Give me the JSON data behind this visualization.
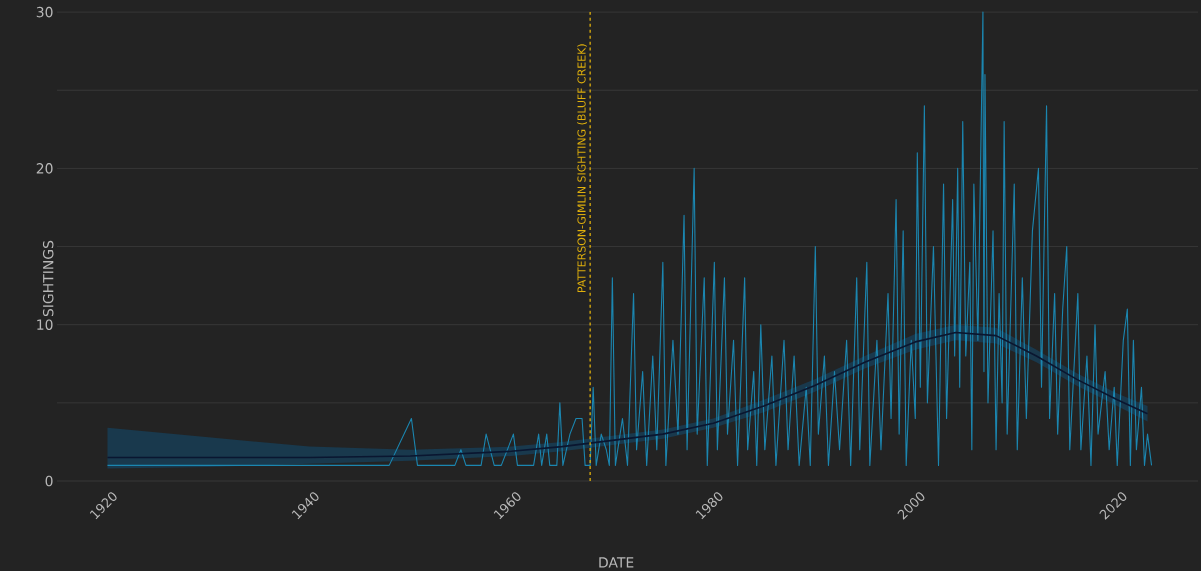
{
  "chart_data": {
    "type": "line",
    "xlabel": "DATE",
    "ylabel": "SIGHTINGS",
    "xlim": [
      1915,
      2028
    ],
    "ylim": [
      0,
      30
    ],
    "xticks": [
      1920,
      1940,
      1960,
      1980,
      2000,
      2020
    ],
    "yticks": [
      0,
      {
        "value": 5,
        "label": null
      },
      10,
      {
        "value": 15,
        "label": null
      },
      20,
      {
        "value": 25,
        "label": null
      },
      30
    ],
    "grid": "y",
    "ref_lines": [
      {
        "axis": "x",
        "value": 1967.8,
        "label": "PATTERSON-GIMLIN SIGHTING (BLUFF CREEK)",
        "color": "#e0b00c",
        "line_style": "dashed"
      }
    ],
    "series": [
      {
        "color": "#1b86b0",
        "x": [
          1920,
          1947.9,
          1950.1,
          1950.7,
          1954.4,
          1955.0,
          1955.5,
          1957.0,
          1957.5,
          1958.3,
          1959.0,
          1960.2,
          1960.6,
          1962.2,
          1962.7,
          1963.0,
          1963.5,
          1963.8,
          1964.5,
          1964.8,
          1965.1,
          1965.8,
          1966.4,
          1967.0,
          1967.3,
          1967.8,
          1968.1,
          1968.4,
          1968.9,
          1969.4,
          1969.7,
          1970.0,
          1970.3,
          1971.0,
          1971.5,
          1972.1,
          1972.4,
          1973.0,
          1973.4,
          1974.0,
          1974.4,
          1975.0,
          1975.3,
          1976.0,
          1976.5,
          1977.1,
          1977.4,
          1978.1,
          1978.4,
          1979.1,
          1979.4,
          1980.1,
          1980.4,
          1981.1,
          1981.4,
          1982.0,
          1982.4,
          1983.1,
          1983.4,
          1984.0,
          1984.3,
          1984.7,
          1985.1,
          1985.8,
          1986.2,
          1987.0,
          1987.4,
          1988.0,
          1988.5,
          1989.2,
          1989.6,
          1990.1,
          1990.4,
          1991.0,
          1991.4,
          1992.0,
          1992.5,
          1993.2,
          1993.6,
          1994.2,
          1994.5,
          1995.2,
          1995.5,
          1996.2,
          1996.6,
          1997.3,
          1997.6,
          1998.1,
          1998.4,
          1998.8,
          1999.1,
          1999.6,
          2000.0,
          2000.2,
          2000.5,
          2000.9,
          2001.2,
          2001.8,
          2002.3,
          2002.8,
          2003.1,
          2003.7,
          2003.9,
          2004.2,
          2004.4,
          2004.7,
          2005.0,
          2005.4,
          2005.6,
          2005.8,
          2006.2,
          2006.7,
          2006.8,
          2006.9,
          2007.2,
          2007.7,
          2008.0,
          2008.3,
          2008.6,
          2008.8,
          2009.1,
          2009.8,
          2010.1,
          2010.6,
          2011.0,
          2011.6,
          2011.9,
          2012.2,
          2012.5,
          2013.0,
          2013.3,
          2013.8,
          2014.1,
          2014.6,
          2015.0,
          2015.3,
          2016.1,
          2016.4,
          2017.0,
          2017.4,
          2017.8,
          2018.1,
          2018.8,
          2019.2,
          2019.7,
          2020.0,
          2020.6,
          2021.0,
          2021.3,
          2021.6,
          2021.9,
          2022.4,
          2022.7,
          2023.0,
          2023.4
        ],
        "values": [
          1,
          1,
          4,
          1,
          1,
          2,
          1,
          1,
          3,
          1,
          1,
          3,
          1,
          1,
          3,
          1,
          3,
          1,
          1,
          5,
          1,
          3,
          4,
          4,
          1,
          1,
          6,
          1,
          3,
          2,
          1,
          13,
          1,
          4,
          1,
          12,
          2,
          7,
          1,
          8,
          2,
          14,
          1,
          9,
          3,
          17,
          2,
          20,
          3,
          13,
          1,
          14,
          2,
          13,
          3,
          9,
          1,
          13,
          2,
          7,
          1,
          10,
          2,
          8,
          1,
          9,
          2,
          8,
          1,
          6,
          1,
          15,
          3,
          8,
          1,
          7,
          2,
          9,
          1,
          13,
          2,
          14,
          1,
          9,
          2,
          12,
          4,
          18,
          3,
          16,
          1,
          9,
          4,
          21,
          6,
          24,
          5,
          15,
          1,
          19,
          4,
          18,
          8,
          20,
          6,
          23,
          8,
          14,
          2,
          19,
          9,
          30,
          7,
          26,
          5,
          16,
          2,
          12,
          5,
          23,
          3,
          19,
          2,
          13,
          4,
          16,
          18,
          20,
          6,
          24,
          4,
          12,
          3,
          11,
          15,
          2,
          12,
          2,
          8,
          1,
          10,
          3,
          7,
          2,
          6,
          1,
          9,
          11,
          1,
          9,
          2,
          6,
          1,
          3,
          1
        ]
      },
      {
        "type": "line",
        "color": "#0a1630",
        "x": [
          1920,
          1930,
          1940,
          1950,
          1960,
          1965,
          1970,
          1975,
          1980,
          1985,
          1990,
          1995,
          2000,
          2004,
          2008,
          2012,
          2016,
          2020,
          2023
        ],
        "values": [
          1.5,
          1.5,
          1.5,
          1.6,
          1.9,
          2.2,
          2.6,
          3.0,
          3.7,
          4.8,
          6.1,
          7.6,
          8.9,
          9.5,
          9.3,
          8.0,
          6.5,
          5.2,
          4.3
        ],
        "lower": [
          0.8,
          0.9,
          1.1,
          1.3,
          1.6,
          1.9,
          2.3,
          2.7,
          3.4,
          4.4,
          5.7,
          7.2,
          8.4,
          9.0,
          8.8,
          7.6,
          6.1,
          4.8,
          3.8
        ],
        "upper": [
          3.4,
          2.8,
          2.2,
          2.0,
          2.2,
          2.5,
          2.9,
          3.3,
          4.0,
          5.2,
          6.5,
          8.0,
          9.4,
          10.0,
          9.8,
          8.4,
          6.9,
          5.6,
          4.8
        ]
      }
    ]
  }
}
